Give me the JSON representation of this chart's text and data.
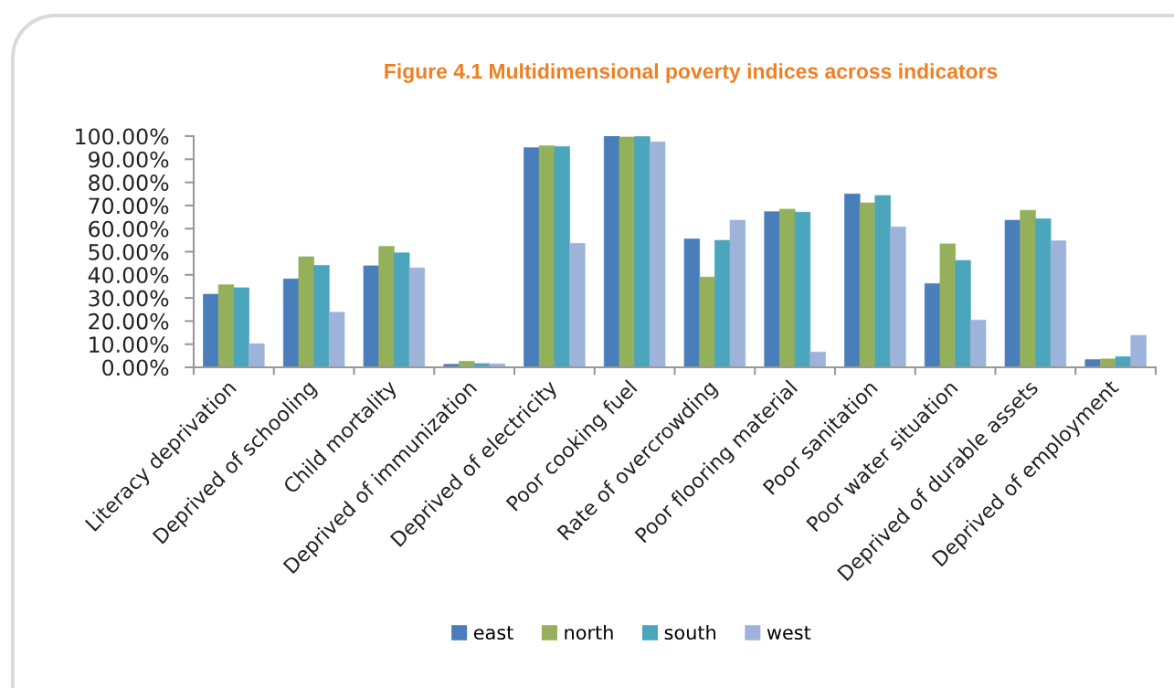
{
  "chart_data": {
    "type": "bar",
    "title": "Figure 4.1 Multidimensional poverty indices across indicators",
    "categories": [
      "Literacy deprivation",
      "Deprived of schooling",
      "Child mortality",
      "Deprived of immunization",
      "Deprived of electricity",
      "Poor cooking fuel",
      "Rate of overcrowding",
      "Poor flooring material",
      "Poor sanitation",
      "Poor water situation",
      "Deprived of durable assets",
      "Deprived of employment"
    ],
    "series": [
      {
        "name": "east",
        "color": "#4a7ebb",
        "values": [
          31.6,
          38.2,
          43.9,
          1.3,
          95.0,
          100.0,
          55.5,
          67.3,
          75.0,
          36.2,
          63.6,
          3.3
        ]
      },
      {
        "name": "north",
        "color": "#94b05a",
        "values": [
          35.7,
          47.8,
          52.3,
          2.6,
          95.8,
          99.6,
          39.0,
          68.4,
          71.1,
          53.4,
          67.9,
          3.6
        ]
      },
      {
        "name": "south",
        "color": "#4aa5bd",
        "values": [
          34.4,
          44.1,
          49.5,
          1.6,
          95.5,
          99.8,
          54.9,
          67.1,
          74.3,
          46.2,
          64.2,
          4.6
        ]
      },
      {
        "name": "west",
        "color": "#9db3da",
        "values": [
          10.2,
          23.8,
          43.0,
          1.5,
          53.6,
          97.5,
          63.6,
          6.6,
          60.7,
          20.4,
          54.7,
          13.8
        ]
      }
    ],
    "ylim": [
      0,
      100
    ],
    "yticks": [
      {
        "value": 0,
        "label": "0.00%"
      },
      {
        "value": 10,
        "label": "10.00%"
      },
      {
        "value": 20,
        "label": "20.00%"
      },
      {
        "value": 30,
        "label": "30.00%"
      },
      {
        "value": 40,
        "label": "40.00%"
      },
      {
        "value": 50,
        "label": "50.00%"
      },
      {
        "value": 60,
        "label": "60.00%"
      },
      {
        "value": 70,
        "label": "70.00%"
      },
      {
        "value": 80,
        "label": "80.00%"
      },
      {
        "value": 90,
        "label": "90.00%"
      },
      {
        "value": 100,
        "label": "100.00%"
      }
    ],
    "grid": false,
    "legend": "bottom"
  }
}
